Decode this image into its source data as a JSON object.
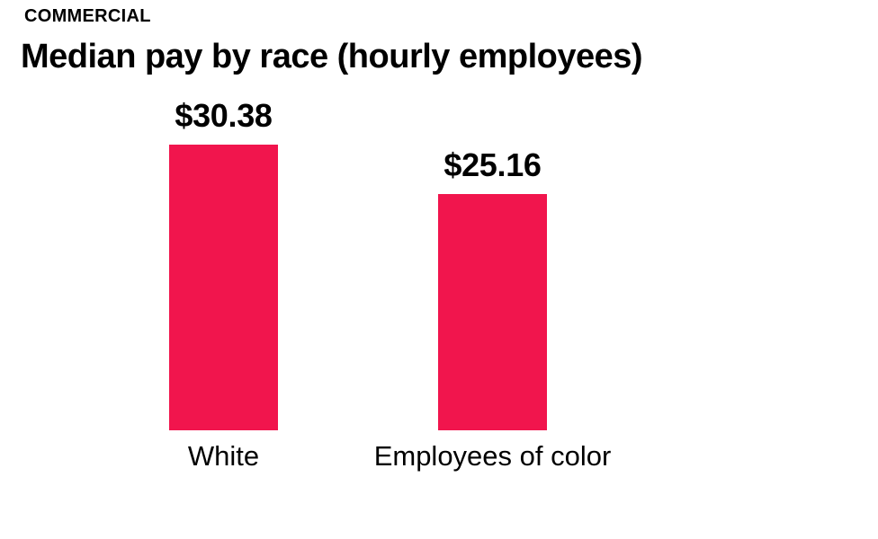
{
  "header": {
    "kicker": "COMMERCIAL",
    "title": "Median pay by race (hourly employees)"
  },
  "chart_data": {
    "type": "bar",
    "title": "Median pay by race (hourly employees)",
    "categories": [
      "White",
      "Employees of color"
    ],
    "values": [
      30.38,
      25.16
    ],
    "value_labels": [
      "$30.38",
      "$25.16"
    ],
    "xlabel": "",
    "ylabel": "",
    "ylim": [
      0,
      30.38
    ],
    "grid": false,
    "legend": "none",
    "bar_color": "#F1154D"
  },
  "colors": {
    "background": "#FFFFFF",
    "text": "#000000",
    "bar": "#F1154D"
  }
}
